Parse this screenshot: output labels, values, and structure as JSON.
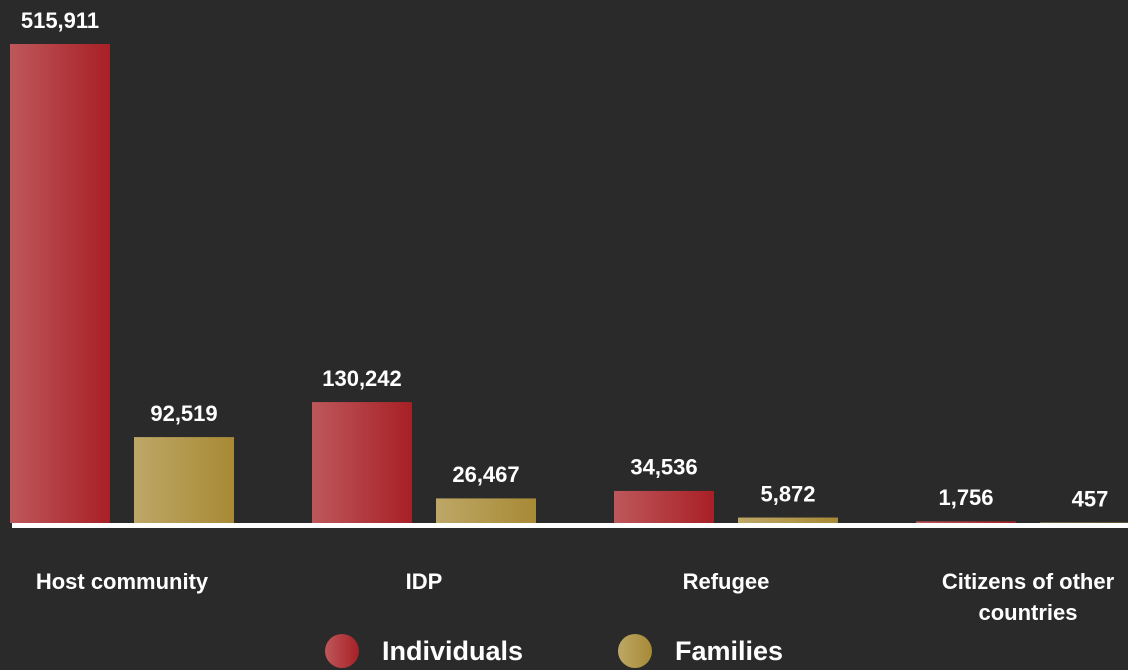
{
  "chart_data": {
    "type": "bar",
    "categories": [
      "Host community",
      "IDP",
      "Refugee",
      "Citizens of other countries"
    ],
    "series": [
      {
        "name": "Individuals",
        "color": "#a82025",
        "values": [
          515911,
          130242,
          34536,
          1756
        ],
        "value_labels": [
          "515,911",
          "130,242",
          "34,536",
          "1,756"
        ]
      },
      {
        "name": "Families",
        "color": "#a88a35",
        "values": [
          92519,
          26467,
          5872,
          457
        ],
        "value_labels": [
          "92,519",
          "26,467",
          "5,872",
          "457"
        ]
      }
    ]
  }
}
